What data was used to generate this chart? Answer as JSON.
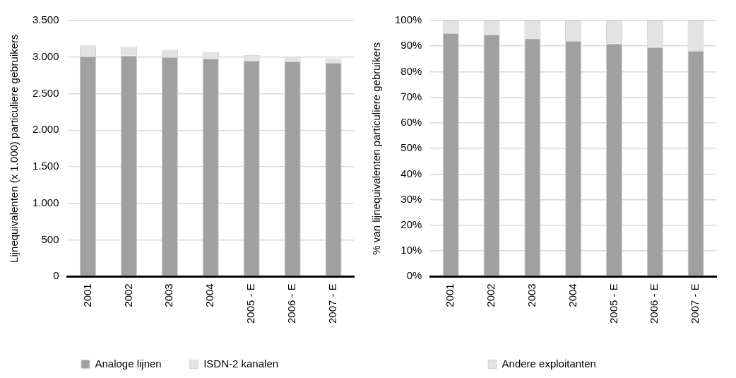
{
  "chart_data": [
    {
      "type": "bar",
      "stacked": true,
      "categories": [
        "2001",
        "2002",
        "2003",
        "2004",
        "2005 - E",
        "2006 - E",
        "2007 - E"
      ],
      "ylabel": "Lijnequivalenten (x 1.000) particuliere gebruikers",
      "ylim": [
        0,
        3500
      ],
      "yticks": [
        0,
        500,
        {
          "value": 1000,
          "label": "1.000"
        },
        {
          "value": 1500,
          "label": "1.500"
        },
        {
          "value": 2000,
          "label": "2.000"
        },
        {
          "value": 2500,
          "label": "2.500"
        },
        {
          "value": 3000,
          "label": "3.000"
        },
        {
          "value": 3500,
          "label": "3.500"
        }
      ],
      "grid": "y",
      "legend": "bottom",
      "series": [
        {
          "name": "Analoge lijnen",
          "color": "#a0a0a0",
          "values": [
            3010,
            3020,
            3000,
            2980,
            2950,
            2940,
            2920
          ]
        },
        {
          "name": "ISDN-2 kanalen",
          "color": "#e3e3e3",
          "values": [
            150,
            120,
            100,
            90,
            80,
            70,
            60
          ]
        }
      ]
    },
    {
      "type": "bar",
      "stacked": true,
      "categories": [
        "2001",
        "2002",
        "2003",
        "2004",
        "2005 - E",
        "2006 - E",
        "2007 - E"
      ],
      "ylabel": "% van lijnequivalenten particuliere gebruikers",
      "ylim": [
        0,
        100
      ],
      "yticks": [
        {
          "value": 0,
          "label": "0%"
        },
        {
          "value": 10,
          "label": "10%"
        },
        {
          "value": 20,
          "label": "20%"
        },
        {
          "value": 30,
          "label": "30%"
        },
        {
          "value": 40,
          "label": "40%"
        },
        {
          "value": 50,
          "label": "50%"
        },
        {
          "value": 60,
          "label": "60%"
        },
        {
          "value": 70,
          "label": "70%"
        },
        {
          "value": 80,
          "label": "80%"
        },
        {
          "value": 90,
          "label": "90%"
        },
        {
          "value": 100,
          "label": "100%"
        }
      ],
      "grid": "y",
      "legend": "bottom",
      "series": [
        {
          "color": "#a0a0a0",
          "values": [
            95,
            94.6,
            93,
            92,
            91,
            89.6,
            88.1
          ]
        },
        {
          "name": "Andere exploitanten",
          "color": "#e3e3e3",
          "values": [
            5,
            5.4,
            7,
            8,
            9,
            10.4,
            11.9
          ]
        }
      ]
    }
  ]
}
